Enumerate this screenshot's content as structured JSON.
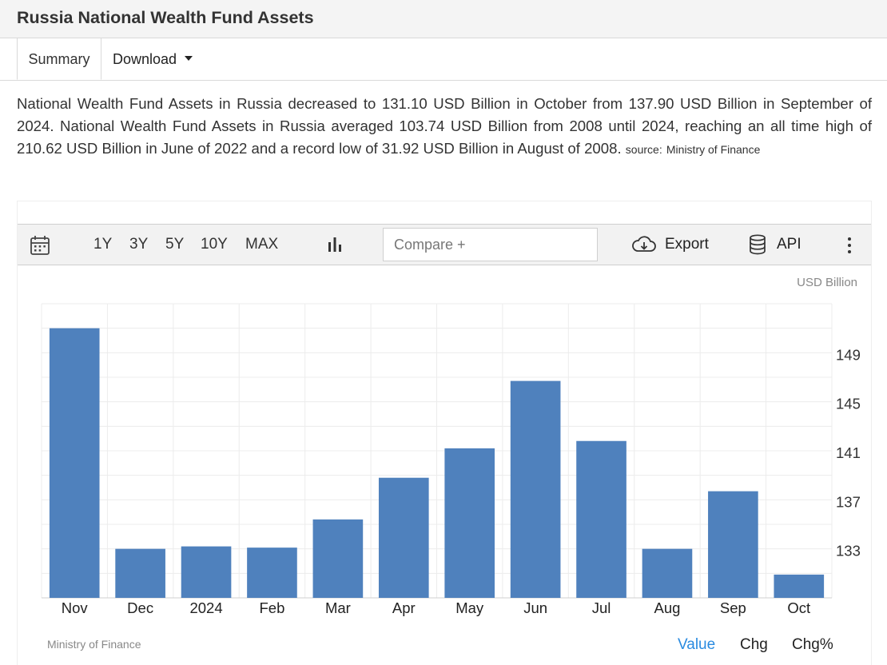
{
  "header": {
    "title": "Russia National Wealth Fund Assets"
  },
  "tabs": {
    "summary": "Summary",
    "download": "Download"
  },
  "description": {
    "text": "National Wealth Fund Assets in Russia decreased to 131.10 USD Billion in October from 137.90 USD Billion in September of 2024. National Wealth Fund Assets in Russia averaged 103.74 USD Billion from 2008 until 2024, reaching an all time high of 210.62 USD Billion in June of 2022 and a record low of 31.92 USD Billion in August of 2008.",
    "source_label": "source:",
    "source": "Ministry of Finance"
  },
  "toolbar": {
    "ranges": [
      "1Y",
      "3Y",
      "5Y",
      "10Y",
      "MAX"
    ],
    "compare_placeholder": "Compare +",
    "export_label": "Export",
    "api_label": "API",
    "icons": [
      "calendar-icon",
      "bar-chart-icon",
      "cloud-download-icon",
      "database-icon",
      "kebab-menu-icon"
    ]
  },
  "chart_data": {
    "type": "bar",
    "unit": "USD Billion",
    "categories": [
      "Nov",
      "Dec",
      "2024",
      "Feb",
      "Mar",
      "Apr",
      "May",
      "Jun",
      "Jul",
      "Aug",
      "Sep",
      "Oct"
    ],
    "values": [
      151.2,
      133.2,
      133.4,
      133.3,
      135.6,
      139.0,
      141.4,
      146.9,
      142.0,
      133.2,
      137.9,
      131.1
    ],
    "yticks": [
      133,
      137,
      141,
      145,
      149
    ],
    "ylim": [
      129.2,
      153.2
    ],
    "y_axis_side": "right",
    "bar_color": "#4f81bd",
    "source": "Ministry of Finance"
  },
  "view_buttons": [
    {
      "label": "Value",
      "active": true,
      "color": "#2a8be0"
    },
    {
      "label": "Chg",
      "active": false,
      "color": "#222222"
    },
    {
      "label": "Chg%",
      "active": false,
      "color": "#222222"
    }
  ]
}
